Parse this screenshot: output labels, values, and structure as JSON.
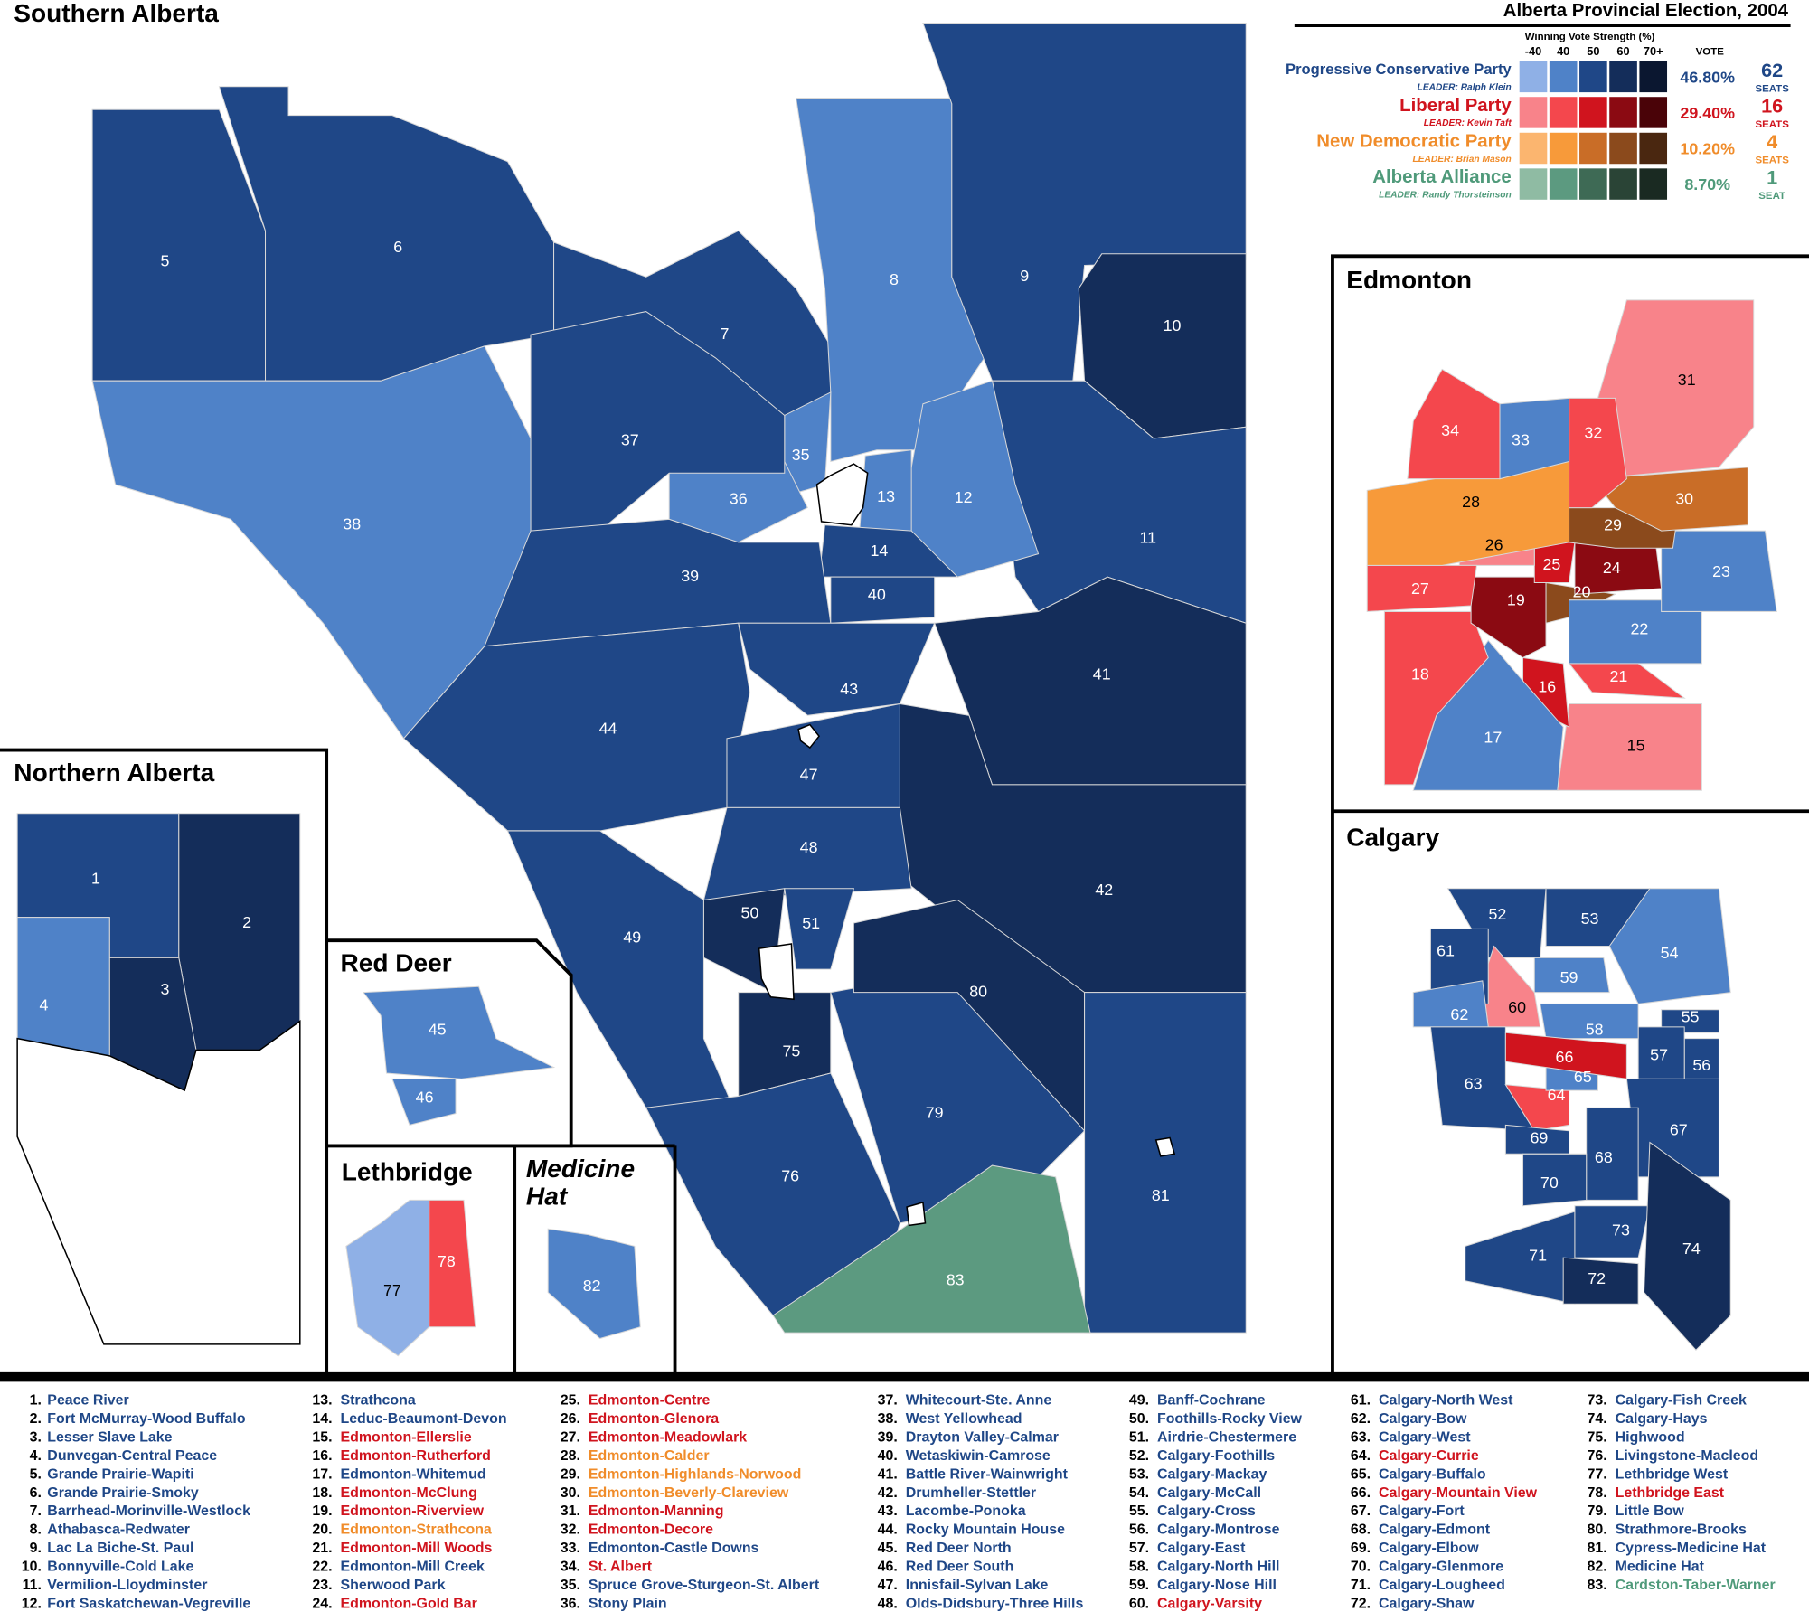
{
  "title": "Alberta Provincial Election, 2004",
  "legend": {
    "strength_title": "Winning Vote Strength (%)",
    "strength_headers": [
      "-40",
      "40",
      "50",
      "60",
      "70+"
    ],
    "vote_header": "VOTE",
    "parties": [
      {
        "name": "Progressive Conservative Party",
        "leader": "LEADER: Ralph Klein",
        "vote": "46.80%",
        "seats": 62,
        "seats_label": "SEATS",
        "color": "#1f4787",
        "swatches": [
          "#8fb0e6",
          "#4f82c8",
          "#1f4787",
          "#142d5a",
          "#0b1730"
        ]
      },
      {
        "name": "Liberal Party",
        "leader": "LEADER: Kevin Taft",
        "vote": "29.40%",
        "seats": 16,
        "seats_label": "SEATS",
        "color": "#d0141e",
        "swatches": [
          "#f8838a",
          "#f4474d",
          "#d0141e",
          "#8b0a12",
          "#4a0308"
        ]
      },
      {
        "name": "New Democratic Party",
        "leader": "LEADER: Brian Mason",
        "vote": "10.20%",
        "seats": 4,
        "seats_label": "SEATS",
        "color": "#f08c2a",
        "swatches": [
          "#fbb56f",
          "#f79a3a",
          "#c96d27",
          "#8b4a1c",
          "#4a2710"
        ]
      },
      {
        "name": "Alberta Alliance",
        "leader": "LEADER: Randy Thorsteinson",
        "vote": "8.70%",
        "seats": 1,
        "seats_label": "SEAT",
        "color": "#4f9a7a",
        "swatches": [
          "#8fbba3",
          "#5c9a80",
          "#3e6a55",
          "#2a4436",
          "#1a2a22"
        ]
      }
    ]
  },
  "panels": {
    "southern": "Southern Alberta",
    "northern": "Northern Alberta",
    "edmonton": "Edmonton",
    "calgary": "Calgary",
    "red_deer": "Red Deer",
    "lethbridge": "Lethbridge",
    "medicine_hat": "Medicine Hat"
  },
  "districts": [
    {
      "number": "1",
      "list_number": "1.",
      "name": "Peace River",
      "color": "#1f4787",
      "fill": "#1f4787"
    },
    {
      "number": "2",
      "list_number": "2.",
      "name": "Fort McMurray-Wood Buffalo",
      "color": "#1f4787",
      "fill": "#142d5a"
    },
    {
      "number": "3",
      "list_number": "3.",
      "name": "Lesser Slave Lake",
      "color": "#1f4787",
      "fill": "#142d5a"
    },
    {
      "number": "4",
      "list_number": "4.",
      "name": "Dunvegan-Central Peace",
      "color": "#1f4787",
      "fill": "#4f82c8"
    },
    {
      "number": "5",
      "list_number": "5.",
      "name": "Grande Prairie-Wapiti",
      "color": "#1f4787",
      "fill": "#1f4787"
    },
    {
      "number": "6",
      "list_number": "6.",
      "name": "Grande Prairie-Smoky",
      "color": "#1f4787",
      "fill": "#1f4787"
    },
    {
      "number": "7",
      "list_number": "7.",
      "name": "Barrhead-Morinville-Westlock",
      "color": "#1f4787",
      "fill": "#1f4787"
    },
    {
      "number": "8",
      "list_number": "8.",
      "name": "Athabasca-Redwater",
      "color": "#1f4787",
      "fill": "#4f82c8"
    },
    {
      "number": "9",
      "list_number": "9.",
      "name": "Lac La Biche-St. Paul",
      "color": "#1f4787",
      "fill": "#1f4787"
    },
    {
      "number": "10",
      "list_number": "10.",
      "name": "Bonnyville-Cold Lake",
      "color": "#1f4787",
      "fill": "#142d5a"
    },
    {
      "number": "11",
      "list_number": "11.",
      "name": "Vermilion-Lloydminster",
      "color": "#1f4787",
      "fill": "#1f4787"
    },
    {
      "number": "12",
      "list_number": "12.",
      "name": "Fort Saskatchewan-Vegreville",
      "color": "#1f4787",
      "fill": "#4f82c8"
    },
    {
      "number": "13",
      "list_number": "13.",
      "name": "Strathcona",
      "color": "#1f4787",
      "fill": "#4f82c8"
    },
    {
      "number": "14",
      "list_number": "14.",
      "name": "Leduc-Beaumont-Devon",
      "color": "#1f4787",
      "fill": "#1f4787"
    },
    {
      "number": "15",
      "list_number": "15.",
      "name": "Edmonton-Ellerslie",
      "color": "#d0141e",
      "fill": "#f8838a"
    },
    {
      "number": "16",
      "list_number": "16.",
      "name": "Edmonton-Rutherford",
      "color": "#d0141e",
      "fill": "#d0141e"
    },
    {
      "number": "17",
      "list_number": "17.",
      "name": "Edmonton-Whitemud",
      "color": "#1f4787",
      "fill": "#4f82c8"
    },
    {
      "number": "18",
      "list_number": "18.",
      "name": "Edmonton-McClung",
      "color": "#d0141e",
      "fill": "#f4474d"
    },
    {
      "number": "19",
      "list_number": "19.",
      "name": "Edmonton-Riverview",
      "color": "#d0141e",
      "fill": "#8b0a12"
    },
    {
      "number": "20",
      "list_number": "20.",
      "name": "Edmonton-Strathcona",
      "color": "#f08c2a",
      "fill": "#8b4a1c"
    },
    {
      "number": "21",
      "list_number": "21.",
      "name": "Edmonton-Mill Woods",
      "color": "#d0141e",
      "fill": "#f4474d"
    },
    {
      "number": "22",
      "list_number": "22.",
      "name": "Edmonton-Mill Creek",
      "color": "#1f4787",
      "fill": "#4f82c8"
    },
    {
      "number": "23",
      "list_number": "23.",
      "name": "Sherwood Park",
      "color": "#1f4787",
      "fill": "#4f82c8"
    },
    {
      "number": "24",
      "list_number": "24.",
      "name": "Edmonton-Gold Bar",
      "color": "#d0141e",
      "fill": "#8b0a12"
    },
    {
      "number": "25",
      "list_number": "25.",
      "name": "Edmonton-Centre",
      "color": "#d0141e",
      "fill": "#d0141e"
    },
    {
      "number": "26",
      "list_number": "26.",
      "name": "Edmonton-Glenora",
      "color": "#d0141e",
      "fill": "#f8838a"
    },
    {
      "number": "27",
      "list_number": "27.",
      "name": "Edmonton-Meadowlark",
      "color": "#d0141e",
      "fill": "#f4474d"
    },
    {
      "number": "28",
      "list_number": "28.",
      "name": "Edmonton-Calder",
      "color": "#f08c2a",
      "fill": "#f79a3a"
    },
    {
      "number": "29",
      "list_number": "29.",
      "name": "Edmonton-Highlands-Norwood",
      "color": "#f08c2a",
      "fill": "#8b4a1c"
    },
    {
      "number": "30",
      "list_number": "30.",
      "name": "Edmonton-Beverly-Clareview",
      "color": "#f08c2a",
      "fill": "#c96d27"
    },
    {
      "number": "31",
      "list_number": "31.",
      "name": "Edmonton-Manning",
      "color": "#d0141e",
      "fill": "#f8838a"
    },
    {
      "number": "32",
      "list_number": "32.",
      "name": "Edmonton-Decore",
      "color": "#d0141e",
      "fill": "#f4474d"
    },
    {
      "number": "33",
      "list_number": "33.",
      "name": "Edmonton-Castle Downs",
      "color": "#1f4787",
      "fill": "#4f82c8"
    },
    {
      "number": "34",
      "list_number": "34.",
      "name": "St. Albert",
      "color": "#d0141e",
      "fill": "#f4474d"
    },
    {
      "number": "35",
      "list_number": "35.",
      "name": "Spruce Grove-Sturgeon-St. Albert",
      "color": "#1f4787",
      "fill": "#4f82c8"
    },
    {
      "number": "36",
      "list_number": "36.",
      "name": "Stony Plain",
      "color": "#1f4787",
      "fill": "#4f82c8"
    },
    {
      "number": "37",
      "list_number": "37.",
      "name": "Whitecourt-Ste. Anne",
      "color": "#1f4787",
      "fill": "#1f4787"
    },
    {
      "number": "38",
      "list_number": "38.",
      "name": "West Yellowhead",
      "color": "#1f4787",
      "fill": "#4f82c8"
    },
    {
      "number": "39",
      "list_number": "39.",
      "name": "Drayton Valley-Calmar",
      "color": "#1f4787",
      "fill": "#1f4787"
    },
    {
      "number": "40",
      "list_number": "40.",
      "name": "Wetaskiwin-Camrose",
      "color": "#1f4787",
      "fill": "#1f4787"
    },
    {
      "number": "41",
      "list_number": "41.",
      "name": "Battle River-Wainwright",
      "color": "#1f4787",
      "fill": "#142d5a"
    },
    {
      "number": "42",
      "list_number": "42.",
      "name": "Drumheller-Stettler",
      "color": "#1f4787",
      "fill": "#142d5a"
    },
    {
      "number": "43",
      "list_number": "43.",
      "name": "Lacombe-Ponoka",
      "color": "#1f4787",
      "fill": "#1f4787"
    },
    {
      "number": "44",
      "list_number": "44.",
      "name": "Rocky Mountain House",
      "color": "#1f4787",
      "fill": "#1f4787"
    },
    {
      "number": "45",
      "list_number": "45.",
      "name": "Red Deer North",
      "color": "#1f4787",
      "fill": "#4f82c8"
    },
    {
      "number": "46",
      "list_number": "46.",
      "name": "Red Deer South",
      "color": "#1f4787",
      "fill": "#4f82c8"
    },
    {
      "number": "47",
      "list_number": "47.",
      "name": "Innisfail-Sylvan Lake",
      "color": "#1f4787",
      "fill": "#1f4787"
    },
    {
      "number": "48",
      "list_number": "48.",
      "name": "Olds-Didsbury-Three Hills",
      "color": "#1f4787",
      "fill": "#1f4787"
    },
    {
      "number": "49",
      "list_number": "49.",
      "name": "Banff-Cochrane",
      "color": "#1f4787",
      "fill": "#1f4787"
    },
    {
      "number": "50",
      "list_number": "50.",
      "name": "Foothills-Rocky View",
      "color": "#1f4787",
      "fill": "#142d5a"
    },
    {
      "number": "51",
      "list_number": "51.",
      "name": "Airdrie-Chestermere",
      "color": "#1f4787",
      "fill": "#1f4787"
    },
    {
      "number": "52",
      "list_number": "52.",
      "name": "Calgary-Foothills",
      "color": "#1f4787",
      "fill": "#1f4787"
    },
    {
      "number": "53",
      "list_number": "53.",
      "name": "Calgary-Mackay",
      "color": "#1f4787",
      "fill": "#1f4787"
    },
    {
      "number": "54",
      "list_number": "54.",
      "name": "Calgary-McCall",
      "color": "#1f4787",
      "fill": "#4f82c8"
    },
    {
      "number": "55",
      "list_number": "55.",
      "name": "Calgary-Cross",
      "color": "#1f4787",
      "fill": "#1f4787"
    },
    {
      "number": "56",
      "list_number": "56.",
      "name": "Calgary-Montrose",
      "color": "#1f4787",
      "fill": "#1f4787"
    },
    {
      "number": "57",
      "list_number": "57.",
      "name": "Calgary-East",
      "color": "#1f4787",
      "fill": "#1f4787"
    },
    {
      "number": "58",
      "list_number": "58.",
      "name": "Calgary-North Hill",
      "color": "#1f4787",
      "fill": "#4f82c8"
    },
    {
      "number": "59",
      "list_number": "59.",
      "name": "Calgary-Nose Hill",
      "color": "#1f4787",
      "fill": "#4f82c8"
    },
    {
      "number": "60",
      "list_number": "60.",
      "name": "Calgary-Varsity",
      "color": "#d0141e",
      "fill": "#f8838a"
    },
    {
      "number": "61",
      "list_number": "61.",
      "name": "Calgary-North West",
      "color": "#1f4787",
      "fill": "#1f4787"
    },
    {
      "number": "62",
      "list_number": "62.",
      "name": "Calgary-Bow",
      "color": "#1f4787",
      "fill": "#4f82c8"
    },
    {
      "number": "63",
      "list_number": "63.",
      "name": "Calgary-West",
      "color": "#1f4787",
      "fill": "#1f4787"
    },
    {
      "number": "64",
      "list_number": "64.",
      "name": "Calgary-Currie",
      "color": "#d0141e",
      "fill": "#f4474d"
    },
    {
      "number": "65",
      "list_number": "65.",
      "name": "Calgary-Buffalo",
      "color": "#1f4787",
      "fill": "#4f82c8"
    },
    {
      "number": "66",
      "list_number": "66.",
      "name": "Calgary-Mountain View",
      "color": "#d0141e",
      "fill": "#d0141e"
    },
    {
      "number": "67",
      "list_number": "67.",
      "name": "Calgary-Fort",
      "color": "#1f4787",
      "fill": "#1f4787"
    },
    {
      "number": "68",
      "list_number": "68.",
      "name": "Calgary-Edmont",
      "color": "#1f4787",
      "fill": "#1f4787"
    },
    {
      "number": "69",
      "list_number": "69.",
      "name": "Calgary-Elbow",
      "color": "#1f4787",
      "fill": "#1f4787"
    },
    {
      "number": "70",
      "list_number": "70.",
      "name": "Calgary-Glenmore",
      "color": "#1f4787",
      "fill": "#1f4787"
    },
    {
      "number": "71",
      "list_number": "71.",
      "name": "Calgary-Lougheed",
      "color": "#1f4787",
      "fill": "#1f4787"
    },
    {
      "number": "72",
      "list_number": "72.",
      "name": "Calgary-Shaw",
      "color": "#1f4787",
      "fill": "#142d5a"
    },
    {
      "number": "73",
      "list_number": "73.",
      "name": "Calgary-Fish Creek",
      "color": "#1f4787",
      "fill": "#1f4787"
    },
    {
      "number": "74",
      "list_number": "74.",
      "name": "Calgary-Hays",
      "color": "#1f4787",
      "fill": "#142d5a"
    },
    {
      "number": "75",
      "list_number": "75.",
      "name": "Highwood",
      "color": "#1f4787",
      "fill": "#142d5a"
    },
    {
      "number": "76",
      "list_number": "76.",
      "name": "Livingstone-Macleod",
      "color": "#1f4787",
      "fill": "#1f4787"
    },
    {
      "number": "77",
      "list_number": "77.",
      "name": "Lethbridge West",
      "color": "#1f4787",
      "fill": "#8fb0e6"
    },
    {
      "number": "78",
      "list_number": "78.",
      "name": "Lethbridge East",
      "color": "#d0141e",
      "fill": "#f4474d"
    },
    {
      "number": "79",
      "list_number": "79.",
      "name": "Little Bow",
      "color": "#1f4787",
      "fill": "#1f4787"
    },
    {
      "number": "80",
      "list_number": "80.",
      "name": "Strathmore-Brooks",
      "color": "#1f4787",
      "fill": "#142d5a"
    },
    {
      "number": "81",
      "list_number": "81.",
      "name": "Cypress-Medicine Hat",
      "color": "#1f4787",
      "fill": "#1f4787"
    },
    {
      "number": "82",
      "list_number": "82.",
      "name": "Medicine Hat",
      "color": "#1f4787",
      "fill": "#4f82c8"
    },
    {
      "number": "83",
      "list_number": "83.",
      "name": "Cardston-Taber-Warner",
      "color": "#4f9a7a",
      "fill": "#5c9a80"
    }
  ]
}
